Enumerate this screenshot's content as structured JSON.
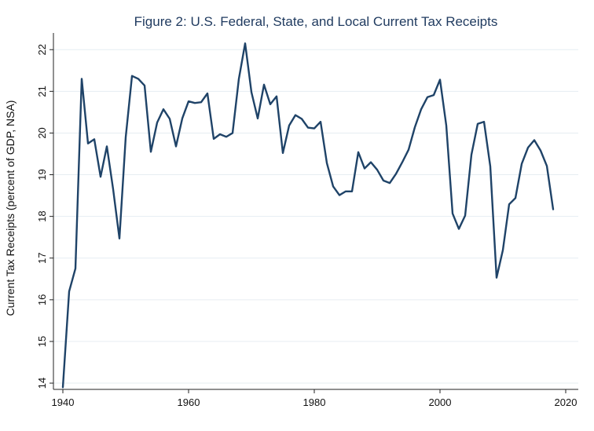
{
  "chart_data": {
    "type": "line",
    "title": "Figure 2: U.S. Federal, State, and Local Current Tax Receipts",
    "xlabel": "",
    "ylabel": "Current Tax Receipts (percent of GDP, NSA)",
    "xlim": [
      1938.5,
      2022
    ],
    "ylim": [
      13.85,
      22.4
    ],
    "xticks": [
      1940,
      1960,
      1980,
      2000,
      2020
    ],
    "yticks": [
      14,
      15,
      16,
      17,
      18,
      19,
      20,
      21,
      22
    ],
    "grid": true,
    "colors": {
      "line": "#1f4368",
      "title": "#1f3a5f",
      "grid": "#e6edf2"
    },
    "series": [
      {
        "x": [
          1940,
          1941,
          1942,
          1943,
          1944,
          1945,
          1946,
          1947,
          1948,
          1949,
          1950,
          1951,
          1952,
          1953,
          1954,
          1955,
          1956,
          1957,
          1958,
          1959,
          1960,
          1961,
          1962,
          1963,
          1964,
          1965,
          1966,
          1967,
          1968,
          1969,
          1970,
          1971,
          1972,
          1973,
          1974,
          1975,
          1976,
          1977,
          1978,
          1979,
          1980,
          1981,
          1982,
          1983,
          1984,
          1985,
          1986,
          1987,
          1988,
          1989,
          1990,
          1991,
          1992,
          1993,
          1994,
          1995,
          1996,
          1997,
          1998,
          1999,
          2000,
          2001,
          2002,
          2003,
          2004,
          2005,
          2006,
          2007,
          2008,
          2009,
          2010,
          2011,
          2012,
          2013,
          2014,
          2015,
          2016,
          2017,
          2018
        ],
        "y": [
          13.9,
          16.2,
          16.75,
          21.3,
          19.75,
          19.85,
          18.95,
          19.68,
          18.65,
          17.47,
          19.9,
          21.37,
          21.3,
          21.14,
          19.55,
          20.25,
          20.57,
          20.34,
          19.68,
          20.35,
          20.76,
          20.72,
          20.74,
          20.95,
          19.86,
          19.97,
          19.91,
          20.0,
          21.3,
          22.15,
          20.98,
          20.35,
          21.16,
          20.69,
          20.88,
          19.52,
          20.18,
          20.43,
          20.34,
          20.13,
          20.11,
          20.27,
          19.28,
          18.72,
          18.51,
          18.6,
          18.6,
          19.54,
          19.15,
          19.3,
          19.12,
          18.86,
          18.8,
          19.02,
          19.3,
          19.6,
          20.14,
          20.57,
          20.86,
          20.91,
          21.28,
          20.18,
          18.07,
          17.7,
          18.02,
          19.48,
          20.22,
          20.27,
          19.2,
          16.53,
          17.19,
          18.29,
          18.44,
          19.26,
          19.65,
          19.83,
          19.58,
          19.21,
          18.17
        ]
      }
    ]
  }
}
